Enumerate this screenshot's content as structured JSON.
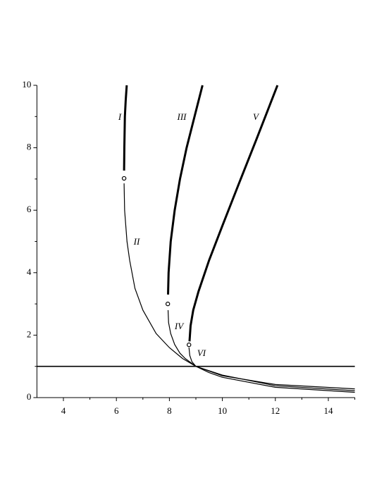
{
  "chart_data": {
    "type": "line",
    "series": [
      {
        "name": "I",
        "color": "#000",
        "width": 3,
        "x": [
          6.29,
          6.3,
          6.32,
          6.35,
          6.39
        ],
        "values": [
          7.27,
          8,
          9,
          9.5,
          10
        ]
      },
      {
        "name": "II",
        "color": "#000",
        "width": 1.2,
        "x": [
          6.29,
          6.31,
          6.4,
          6.5,
          6.7,
          7,
          7.5,
          8,
          8.5,
          9,
          10,
          12,
          15
        ],
        "values": [
          6.86,
          6,
          5,
          4.4,
          3.5,
          2.8,
          2.05,
          1.6,
          1.25,
          1,
          0.7,
          0.42,
          0.28
        ]
      },
      {
        "name": "III",
        "color": "#000",
        "width": 3,
        "x": [
          7.95,
          7.97,
          8.05,
          8.2,
          8.4,
          8.65,
          8.95,
          9.25
        ],
        "values": [
          3.3,
          4,
          5,
          6,
          7,
          8,
          9,
          10
        ]
      },
      {
        "name": "IV",
        "color": "#000",
        "width": 1.2,
        "x": [
          7.95,
          7.97,
          8.05,
          8.2,
          8.4,
          8.6,
          9,
          10,
          12,
          15
        ],
        "values": [
          2.8,
          2.4,
          2.05,
          1.7,
          1.42,
          1.25,
          1,
          0.72,
          0.38,
          0.22
        ]
      },
      {
        "name": "V",
        "color": "#000",
        "width": 3,
        "x": [
          8.76,
          8.8,
          8.9,
          9.1,
          9.5,
          10,
          10.6,
          11.3,
          12.08
        ],
        "values": [
          1.8,
          2.3,
          2.8,
          3.4,
          4.4,
          5.5,
          6.8,
          8.3,
          10
        ]
      },
      {
        "name": "VI",
        "color": "#000",
        "width": 1.2,
        "x": [
          8.74,
          8.77,
          8.85,
          9,
          9.5,
          10,
          12,
          15
        ],
        "values": [
          1.6,
          1.35,
          1.15,
          1,
          0.8,
          0.65,
          0.33,
          0.17
        ]
      },
      {
        "color": "#000",
        "width": 1.6,
        "x": [
          3,
          15
        ],
        "values": [
          1,
          1
        ]
      }
    ],
    "markers": {
      "x": [
        6.29,
        7.94,
        8.74
      ],
      "values": [
        7.02,
        3.0,
        1.69
      ]
    },
    "xlim": [
      3,
      15
    ],
    "ylim": [
      0,
      10
    ],
    "xticks": [
      4,
      6,
      8,
      10,
      12,
      14
    ],
    "yticks": [
      0,
      2,
      4,
      6,
      8,
      10
    ],
    "xminorticks": [
      5,
      7,
      9,
      11,
      13,
      15
    ],
    "yminorticks": [
      1,
      3,
      5,
      7,
      9
    ]
  }
}
